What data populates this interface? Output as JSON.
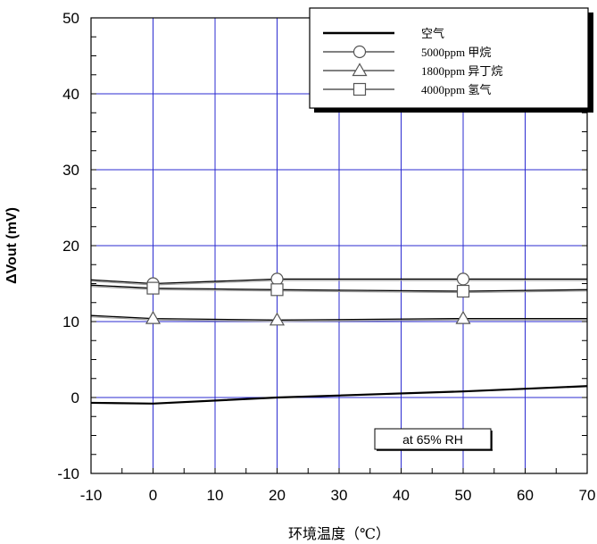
{
  "chart_data": {
    "type": "line",
    "xlabel": "环境温度（℃）",
    "ylabel": "ΔVout (mV)",
    "xlim": [
      -10,
      70
    ],
    "ylim": [
      -10,
      50
    ],
    "x_ticks": [
      -10,
      0,
      10,
      20,
      30,
      40,
      50,
      60,
      70
    ],
    "y_ticks": [
      -10,
      0,
      10,
      20,
      30,
      40,
      50
    ],
    "grid": true,
    "legend_position": "top-right",
    "annotation": "at 65% RH",
    "series": [
      {
        "name": "空气",
        "marker": "none",
        "color": "#000000",
        "x": [
          -10,
          0,
          20,
          50,
          70
        ],
        "y": [
          -0.7,
          -0.8,
          0.0,
          0.8,
          1.5
        ]
      },
      {
        "name": "5000ppm 甲烷",
        "marker": "circle",
        "color": "#000000",
        "x": [
          -10,
          0,
          20,
          50,
          70
        ],
        "y": [
          15.5,
          15.0,
          15.6,
          15.6,
          15.6
        ]
      },
      {
        "name": "1800ppm 异丁烷",
        "marker": "triangle",
        "color": "#000000",
        "x": [
          -10,
          0,
          20,
          50,
          70
        ],
        "y": [
          10.8,
          10.4,
          10.2,
          10.4,
          10.4
        ]
      },
      {
        "name": "4000ppm 氢气",
        "marker": "square",
        "color": "#000000",
        "x": [
          -10,
          0,
          20,
          50,
          70
        ],
        "y": [
          14.8,
          14.4,
          14.2,
          14.0,
          14.2
        ]
      }
    ],
    "colors": {
      "grid": "#2b2bd0",
      "axis": "#000000"
    }
  }
}
